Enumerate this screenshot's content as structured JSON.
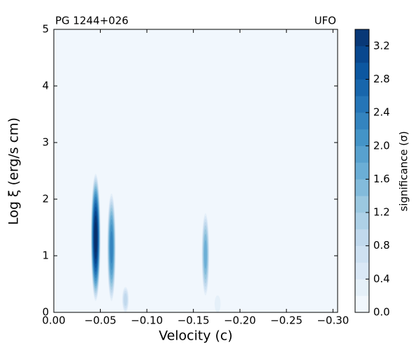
{
  "chart_data": {
    "type": "contour",
    "title_left": "PG 1244+026",
    "title_right": "UFO",
    "xlabel": "Velocity (c)",
    "ylabel": "Log ξ (erg/s cm)",
    "colorbar_label": "significance (σ)",
    "xlim": [
      0,
      -0.305
    ],
    "ylim": [
      0,
      5
    ],
    "xticks": [
      {
        "value": 0,
        "label": "0.00"
      },
      {
        "value": -0.05,
        "label": "−0.05"
      },
      {
        "value": -0.1,
        "label": "−0.10"
      },
      {
        "value": -0.15,
        "label": "−0.15"
      },
      {
        "value": -0.2,
        "label": "−0.20"
      },
      {
        "value": -0.25,
        "label": "−0.25"
      },
      {
        "value": -0.3,
        "label": "−0.30"
      }
    ],
    "yticks": [
      0,
      1,
      2,
      3,
      4,
      5
    ],
    "clim": [
      0,
      3.4
    ],
    "level_step": 0.2,
    "cticks": [
      {
        "value": 0,
        "label": "0.0"
      },
      {
        "value": 0.4,
        "label": "0.4"
      },
      {
        "value": 0.8,
        "label": "0.8"
      },
      {
        "value": 1.2,
        "label": "1.2"
      },
      {
        "value": 1.6,
        "label": "1.6"
      },
      {
        "value": 2.0,
        "label": "2.0"
      },
      {
        "value": 2.4,
        "label": "2.4"
      },
      {
        "value": 2.8,
        "label": "2.8"
      },
      {
        "value": 3.2,
        "label": "3.2"
      }
    ],
    "colormap": [
      "#f7fbff",
      "#deebf7",
      "#c6dbef",
      "#9ecae1",
      "#6baed6",
      "#4292c6",
      "#2171b5",
      "#08519c",
      "#08306b"
    ],
    "regions": {
      "x": [
        -0.045,
        -0.062,
        -0.077,
        -0.163,
        -0.176
      ],
      "y_low": [
        0.2,
        0.2,
        0,
        0.3,
        0
      ],
      "y_high": [
        2.45,
        2.1,
        0.45,
        1.75,
        0.3
      ],
      "peak": [
        3.4,
        2.4,
        0.8,
        1.6,
        0.3
      ]
    }
  }
}
